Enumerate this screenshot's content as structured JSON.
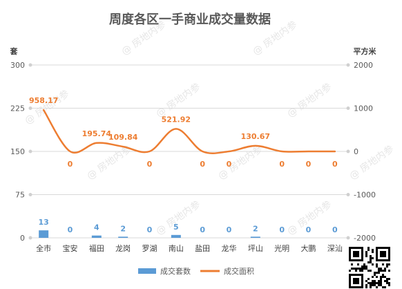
{
  "chart_data": {
    "type": "bar",
    "title": "周度各区一手商业成交量数据",
    "categories": [
      "全市",
      "宝安",
      "福田",
      "龙岗",
      "罗湖",
      "南山",
      "盐田",
      "龙华",
      "坪山",
      "光明",
      "大鹏",
      "深汕"
    ],
    "series": [
      {
        "name": "成交套数",
        "type": "bar",
        "axis": "left",
        "values": [
          13,
          0,
          4,
          2,
          0,
          5,
          0,
          0,
          2,
          0,
          0,
          0
        ],
        "labels": [
          "13",
          "0",
          "4",
          "2",
          "0",
          "5",
          "0",
          "0",
          "2",
          "0",
          "0",
          "0"
        ],
        "color": "#5b9bd5"
      },
      {
        "name": "成交面积",
        "type": "line",
        "axis": "right",
        "smooth": true,
        "values": [
          958.17,
          0,
          195.74,
          109.84,
          0,
          521.92,
          0,
          0,
          130.67,
          0,
          0,
          0
        ],
        "labels": [
          "958.17",
          "0",
          "195.74",
          "109.84",
          "0",
          "521.92",
          "0",
          "0",
          "130.67",
          "0",
          "0",
          "0"
        ],
        "color": "#ed7d31"
      }
    ],
    "y_left": {
      "label": "套",
      "ticks": [
        "0",
        "75",
        "150",
        "225",
        "300"
      ],
      "min": 0,
      "max": 300
    },
    "y_right": {
      "label": "平方米",
      "ticks": [
        "-2000",
        "-1000",
        "0",
        "1000",
        "2000"
      ],
      "min": -2000,
      "max": 2000
    },
    "grid": true,
    "legend_position": "bottom",
    "watermark": "@ 房地内参"
  }
}
